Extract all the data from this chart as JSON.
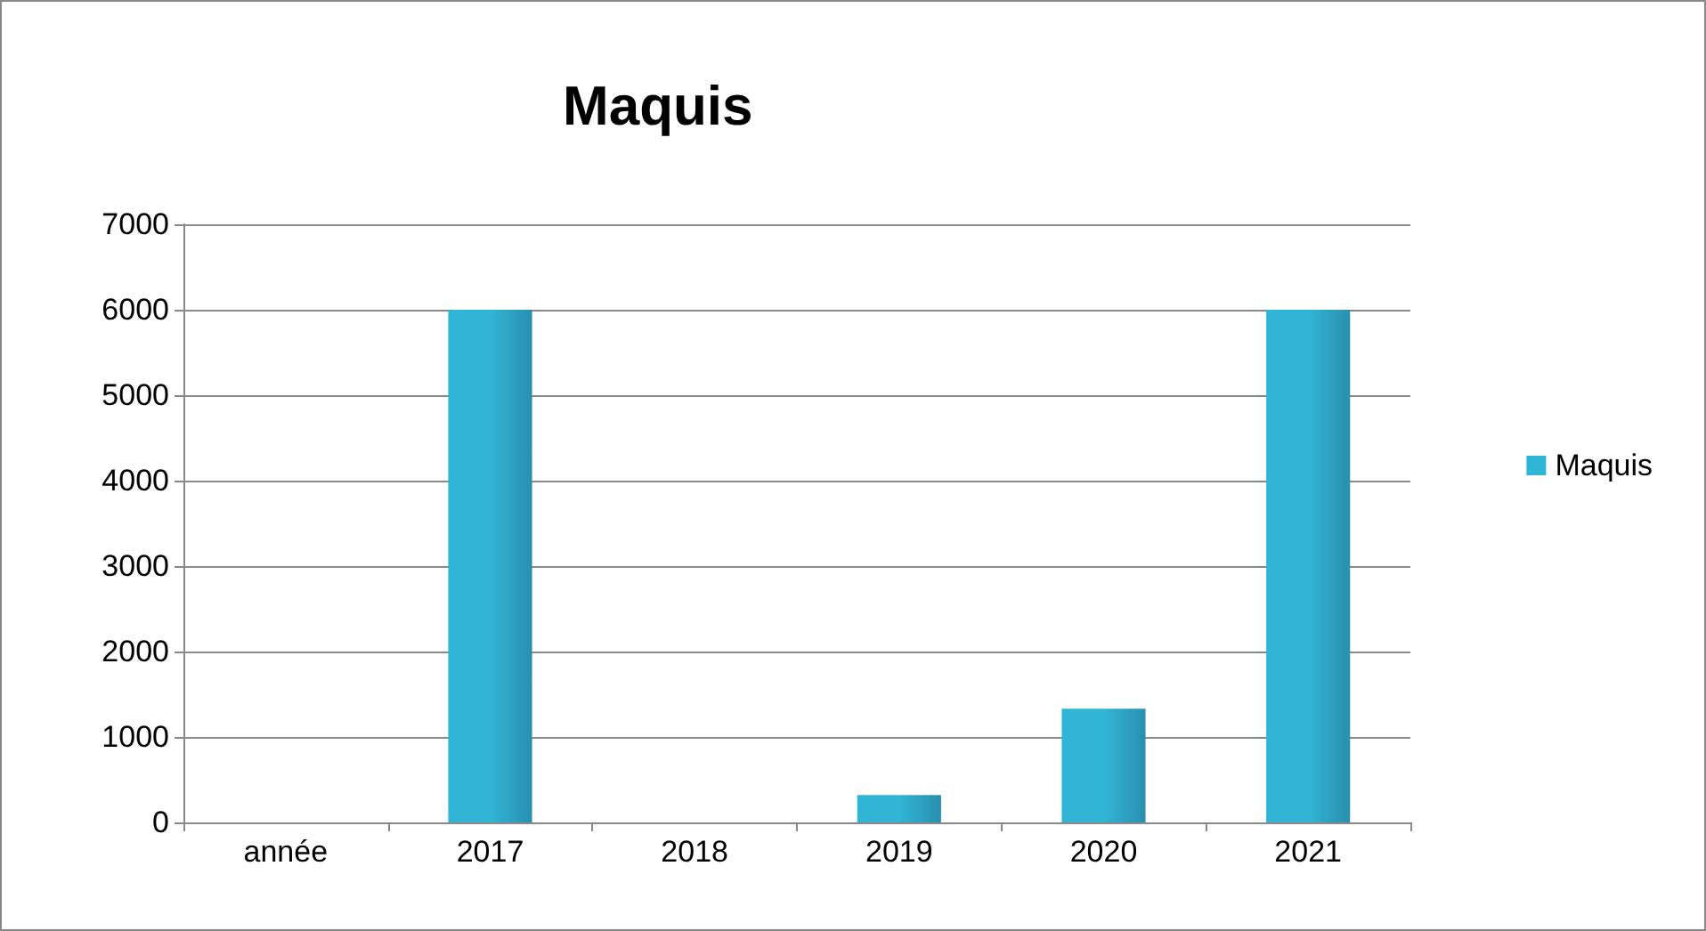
{
  "chart_data": {
    "type": "bar",
    "title": "Maquis",
    "categories": [
      "année",
      "2017",
      "2018",
      "2019",
      "2020",
      "2021"
    ],
    "series": [
      {
        "name": "Maquis",
        "color": "#31b5d6",
        "values": [
          null,
          6000,
          null,
          320,
          1330,
          6000
        ]
      }
    ],
    "ylim": [
      0,
      7000
    ],
    "yticks": [
      0,
      1000,
      2000,
      3000,
      4000,
      5000,
      6000,
      7000
    ],
    "grid": "y",
    "legend": "right"
  }
}
